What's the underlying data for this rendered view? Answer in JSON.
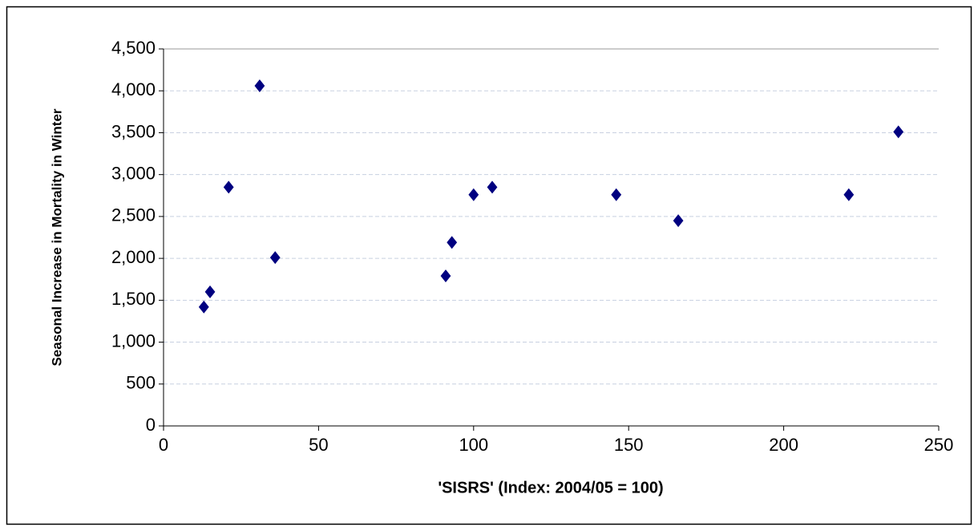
{
  "chart_data": {
    "type": "scatter",
    "x_label": "'SISRS' (Index: 2004/05 = 100)",
    "y_label": "Seasonal Increase in Mortality in Winter",
    "series": [
      {
        "color": "#000080",
        "x": [
          13,
          15,
          21,
          31,
          36,
          91,
          93,
          100,
          106,
          146,
          166,
          221,
          237
        ],
        "values": [
          1420,
          1600,
          2850,
          4060,
          2010,
          1790,
          2190,
          2760,
          2850,
          2760,
          2450,
          2760,
          3510
        ]
      }
    ],
    "xlim": [
      0,
      250
    ],
    "xticks": [
      0,
      50,
      100,
      150,
      200,
      250
    ],
    "ylim": [
      0,
      4500
    ],
    "yticks": [
      0,
      500,
      {
        "value": 1000,
        "label": "1,000"
      },
      {
        "value": 1500,
        "label": "1,500"
      },
      {
        "value": 2000,
        "label": "2,000"
      },
      {
        "value": 2500,
        "label": "2,500"
      },
      {
        "value": 3000,
        "label": "3,000"
      },
      {
        "value": 3500,
        "label": "3,500"
      },
      {
        "value": 4000,
        "label": "4,000"
      },
      {
        "value": 4500,
        "label": "4,500"
      }
    ],
    "grid": true
  }
}
